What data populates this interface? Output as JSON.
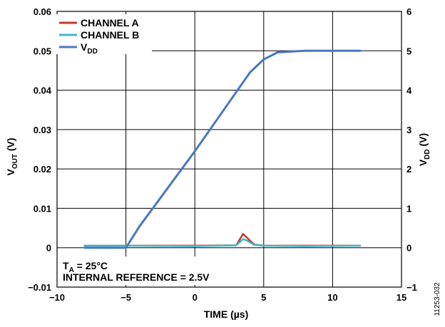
{
  "chart_data": {
    "type": "line",
    "xlabel": "TIME (µs)",
    "ylabel_left": "V",
    "ylabel_left_sub": "OUT",
    "ylabel_left_unit": " (V)",
    "ylabel_right": "V",
    "ylabel_right_sub": "DD",
    "ylabel_right_unit": " (V)",
    "xlim": [
      -10,
      15
    ],
    "ylim_left": [
      -0.01,
      0.06
    ],
    "ylim_right": [
      -1,
      6
    ],
    "x_ticks": [
      "−10",
      "−5",
      "0",
      "5",
      "10",
      "15"
    ],
    "y_left_ticks": [
      "0.06",
      "0.05",
      "0.04",
      "0.03",
      "0.02",
      "0.01",
      "0",
      "−0.01"
    ],
    "y_right_ticks": [
      "6",
      "5",
      "4",
      "3",
      "2",
      "1",
      "0",
      "−1"
    ],
    "grid": true,
    "legend_position": "top-left",
    "series": [
      {
        "name": "CHANNEL A",
        "color": "#c0392b",
        "axis": "left",
        "x": [
          -8,
          -5,
          0,
          3,
          3.5,
          3.8,
          4.3,
          5,
          8,
          12
        ],
        "y": [
          0.0005,
          0.0005,
          0.0005,
          0.0006,
          0.0035,
          0.0025,
          0.0008,
          0.0005,
          0.0005,
          0.0005
        ]
      },
      {
        "name": "CHANNEL B",
        "color": "#3fb7cf",
        "axis": "left",
        "x": [
          -8,
          -5,
          0,
          3,
          3.5,
          3.8,
          4.3,
          5,
          8,
          12
        ],
        "y": [
          0.0005,
          0.0005,
          0.0004,
          0.0006,
          0.0022,
          0.0018,
          0.0007,
          0.0005,
          0.0004,
          0.0005
        ]
      },
      {
        "name": "V",
        "name_sub": "DD",
        "color": "#4a76c0",
        "axis": "right",
        "x": [
          -8,
          -5,
          -4,
          0,
          3,
          4,
          5,
          6,
          8,
          12
        ],
        "y": [
          0,
          0,
          0.55,
          2.45,
          3.95,
          4.45,
          4.78,
          4.96,
          5.0,
          5.0
        ]
      }
    ],
    "annotations": [
      {
        "main": "T",
        "sub": "A",
        "rest": " = 25°C"
      },
      {
        "main": "INTERNAL REFERENCE = 2.5V"
      }
    ],
    "figure_id": "11253-032"
  }
}
